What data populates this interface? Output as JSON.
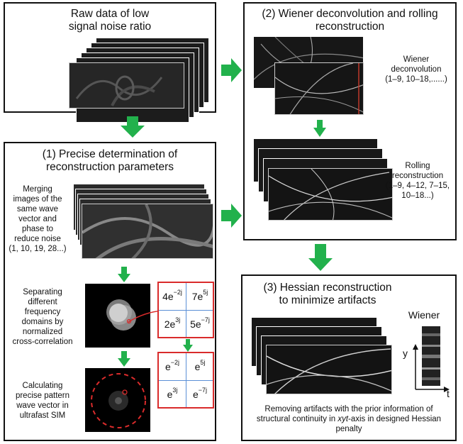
{
  "raw": {
    "title_line1": "Raw data of low",
    "title_line2": "signal noise ratio"
  },
  "step2": {
    "title_line1": "(2) Wiener deconvolution and rolling",
    "title_line2": "reconstruction",
    "wiener_label": [
      "Wiener",
      "deconvolution",
      "(1–9, 10–18,......)"
    ],
    "rolling_label": [
      "Rolling",
      "reconstruction",
      "(1–9, 4–12, 7–15,",
      "10–18...)"
    ]
  },
  "step1": {
    "title_line1": "(1) Precise determination of",
    "title_line2": "reconstruction parameters",
    "merge_label": [
      "Merging",
      "images of the",
      "same wave",
      "vector and",
      "phase to",
      "reduce noise",
      "(1, 10, 19, 28...)"
    ],
    "separate_label": [
      "Separating",
      "different",
      "frequency",
      "domains by",
      "normalized",
      "cross-correlation"
    ],
    "calc_label": [
      "Calculating",
      "precise pattern",
      "wave vector in",
      "ultrafast SIM"
    ],
    "table1": [
      {
        "base": "4e",
        "exp": "−2j"
      },
      {
        "base": "7e",
        "exp": "5j"
      },
      {
        "base": "2e",
        "exp": "3j"
      },
      {
        "base": "5e",
        "exp": "−7j"
      }
    ],
    "table2": [
      {
        "base": "e",
        "exp": "−2j"
      },
      {
        "base": "e",
        "exp": "5j"
      },
      {
        "base": "e",
        "exp": "3j"
      },
      {
        "base": "e",
        "exp": "−7j"
      }
    ]
  },
  "step3": {
    "title_line1": "(3) Hessian reconstruction",
    "title_line2": "to minimize artifacts",
    "wiener_tag": "Wiener",
    "axis_y": "y",
    "axis_t": "t",
    "caption_line1": "Removing artifacts with the prior information of",
    "caption_line2_pre": "structural continuity in ",
    "caption_line2_em": "xyt",
    "caption_line2_post": "-axis in designed Hessian",
    "caption_line3": "penalty"
  },
  "colors": {
    "arrow": "#22b14c",
    "red": "#d92b2b",
    "grid": "#5b8fd6"
  }
}
